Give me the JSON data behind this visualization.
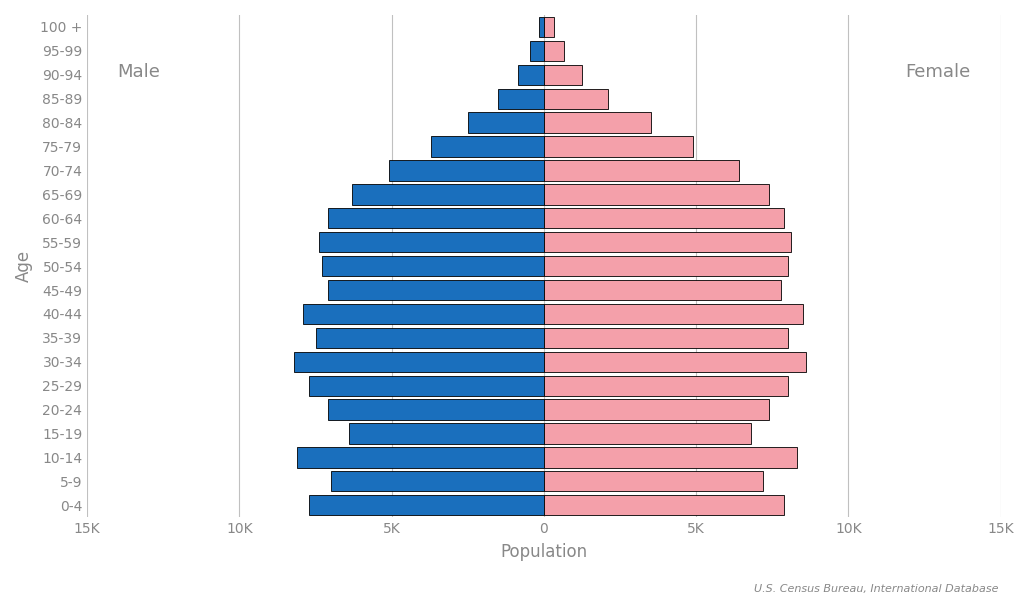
{
  "xlabel": "Population",
  "ylabel": "Age",
  "male_label": "Male",
  "female_label": "Female",
  "source": "U.S. Census Bureau, International Database",
  "age_groups": [
    "0-4",
    "5-9",
    "10-14",
    "15-19",
    "20-24",
    "25-29",
    "30-34",
    "35-39",
    "40-44",
    "45-49",
    "50-54",
    "55-59",
    "60-64",
    "65-69",
    "70-74",
    "75-79",
    "80-84",
    "85-89",
    "90-94",
    "95-99",
    "100 +"
  ],
  "male_values": [
    7700,
    7000,
    8100,
    6400,
    7100,
    7700,
    8200,
    7500,
    7900,
    7100,
    7300,
    7400,
    7100,
    6300,
    5100,
    3700,
    2500,
    1500,
    850,
    450,
    170
  ],
  "female_values": [
    7900,
    7200,
    8300,
    6800,
    7400,
    8000,
    8600,
    8000,
    8500,
    7800,
    8000,
    8100,
    7900,
    7400,
    6400,
    4900,
    3500,
    2100,
    1250,
    650,
    320
  ],
  "male_color": "#1a6fbd",
  "female_color": "#f4a0aa",
  "edge_color": "#000000",
  "background_color": "#ffffff",
  "grid_color": "#c0c0c0",
  "xlim": 15000,
  "tick_values": [
    -15000,
    -10000,
    -5000,
    0,
    5000,
    10000,
    15000
  ],
  "tick_labels": [
    "15K",
    "10K",
    "5K",
    "0",
    "5K",
    "10K",
    "15K"
  ],
  "bar_height": 0.85,
  "text_color": "#888888",
  "label_fontsize": 12,
  "tick_fontsize": 10
}
